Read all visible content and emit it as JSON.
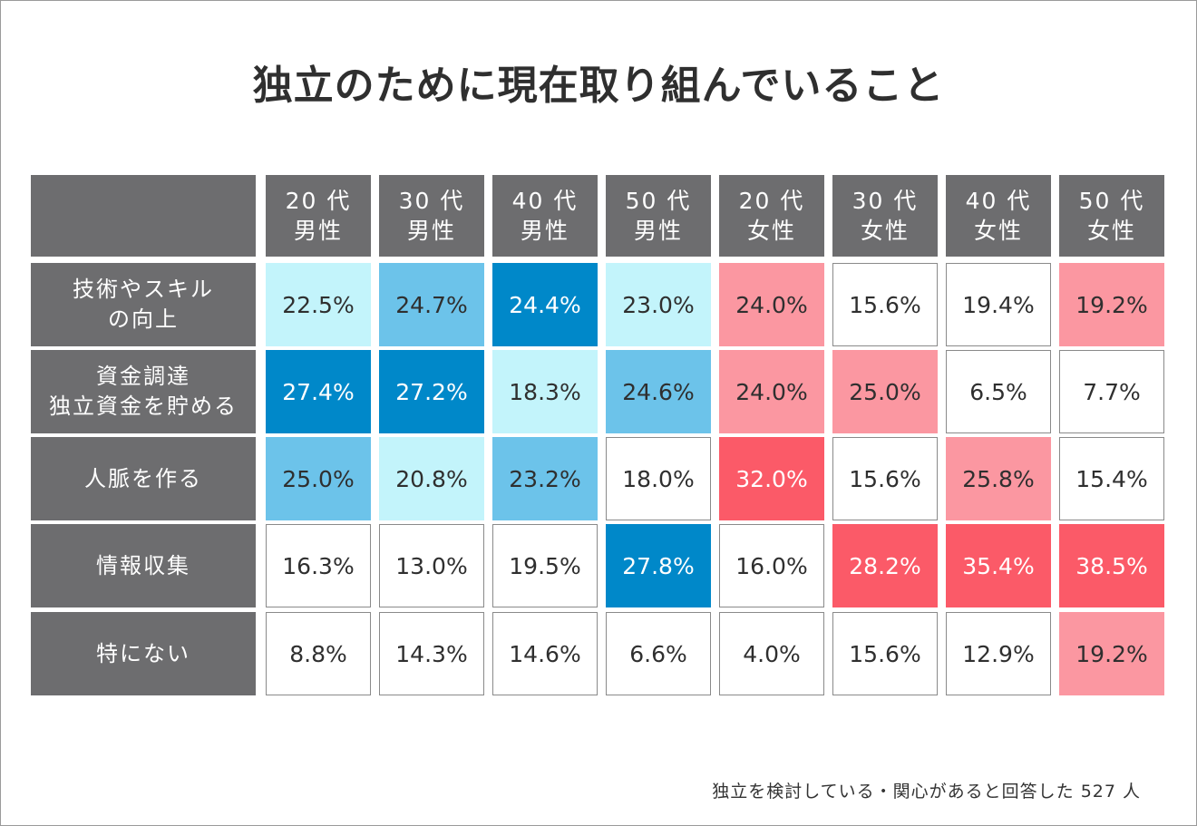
{
  "title": "独立のために現在取り組んでいること",
  "footnote": "独立を検討している・関心があると回答した 527 人",
  "colors": {
    "male_strong": "#0088c9",
    "male_mid": "#6cc3ea",
    "male_light": "#c3f4fb",
    "female_strong": "#fb5a68",
    "female_light": "#fb97a1",
    "none": "#ffffff",
    "header_bg": "#6d6d6f"
  },
  "chart_data": {
    "type": "table",
    "title": "独立のために現在取り組んでいること",
    "columns": [
      {
        "line1": "20 代",
        "line2": "男性"
      },
      {
        "line1": "30 代",
        "line2": "男性"
      },
      {
        "line1": "40 代",
        "line2": "男性"
      },
      {
        "line1": "50 代",
        "line2": "男性"
      },
      {
        "line1": "20 代",
        "line2": "女性"
      },
      {
        "line1": "30 代",
        "line2": "女性"
      },
      {
        "line1": "40 代",
        "line2": "女性"
      },
      {
        "line1": "50 代",
        "line2": "女性"
      }
    ],
    "rows": [
      {
        "label": [
          "技術やスキル",
          "の向上"
        ],
        "values": [
          "22.5%",
          "24.7%",
          "24.4%",
          "23.0%",
          "24.0%",
          "15.6%",
          "19.4%",
          "19.2%"
        ],
        "shades": [
          "male_light",
          "male_mid",
          "male_strong",
          "male_light",
          "female_light",
          "none",
          "none",
          "female_light"
        ]
      },
      {
        "label": [
          "資金調達",
          "独立資金を貯める"
        ],
        "values": [
          "27.4%",
          "27.2%",
          "18.3%",
          "24.6%",
          "24.0%",
          "25.0%",
          "6.5%",
          "7.7%"
        ],
        "shades": [
          "male_strong",
          "male_strong",
          "male_light",
          "male_mid",
          "female_light",
          "female_light",
          "none",
          "none"
        ]
      },
      {
        "label": [
          "人脈を作る"
        ],
        "values": [
          "25.0%",
          "20.8%",
          "23.2%",
          "18.0%",
          "32.0%",
          "15.6%",
          "25.8%",
          "15.4%"
        ],
        "shades": [
          "male_mid",
          "male_light",
          "male_mid",
          "none",
          "female_strong",
          "none",
          "female_light",
          "none"
        ]
      },
      {
        "label": [
          "情報収集"
        ],
        "values": [
          "16.3%",
          "13.0%",
          "19.5%",
          "27.8%",
          "16.0%",
          "28.2%",
          "35.4%",
          "38.5%"
        ],
        "shades": [
          "none",
          "none",
          "none",
          "male_strong",
          "none",
          "female_strong",
          "female_strong",
          "female_strong"
        ]
      },
      {
        "label": [
          "特にない"
        ],
        "values": [
          "8.8%",
          "14.3%",
          "14.6%",
          "6.6%",
          "4.0%",
          "15.6%",
          "12.9%",
          "19.2%"
        ],
        "shades": [
          "none",
          "none",
          "none",
          "none",
          "none",
          "none",
          "none",
          "female_light"
        ]
      }
    ]
  }
}
